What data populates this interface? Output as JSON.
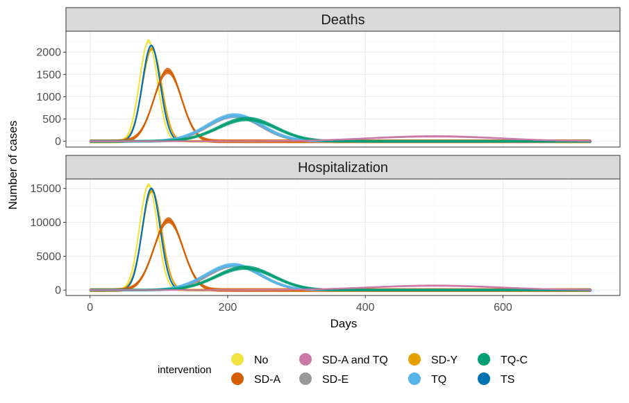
{
  "chart_data": {
    "type": "line",
    "xlabel": "Days",
    "ylabel": "Number of cases",
    "xlim": [
      -35,
      770
    ],
    "x_ticks": [
      0,
      200,
      400,
      600
    ],
    "legend": {
      "title": "intervention",
      "position": "bottom",
      "entries": [
        {
          "label": "No",
          "color": "#F0E442"
        },
        {
          "label": "SD-A",
          "color": "#D55E00"
        },
        {
          "label": "SD-A and TQ",
          "color": "#CC79A7"
        },
        {
          "label": "SD-E",
          "color": "#999999"
        },
        {
          "label": "SD-Y",
          "color": "#E69F00"
        },
        {
          "label": "TQ",
          "color": "#56B4E9"
        },
        {
          "label": "TQ-C",
          "color": "#009E73"
        },
        {
          "label": "TS",
          "color": "#0072B2"
        }
      ]
    },
    "facets": [
      {
        "name": "Deaths",
        "ylim": [
          -130,
          2470
        ],
        "y_ticks": [
          0,
          500,
          1000,
          1500,
          2000
        ],
        "series": [
          {
            "name": "No",
            "color": "#F0E442",
            "peaks": [
              {
                "day": 85,
                "value": 2250,
                "width": 13
              }
            ],
            "band": 45
          },
          {
            "name": "SD-Y",
            "color": "#E69F00",
            "peaks": [
              {
                "day": 90,
                "value": 2080,
                "width": 14
              }
            ],
            "band": 45
          },
          {
            "name": "TS",
            "color": "#0072B2",
            "peaks": [
              {
                "day": 89,
                "value": 2150,
                "width": 13
              }
            ],
            "band": 20
          },
          {
            "name": "SD-A",
            "color": "#D55E00",
            "peaks": [
              {
                "day": 113,
                "value": 1580,
                "width": 20
              }
            ],
            "band": 70
          },
          {
            "name": "SD-E",
            "color": "#999999",
            "peaks": [
              {
                "day": 210,
                "value": 560,
                "width": 38
              }
            ],
            "band": 40
          },
          {
            "name": "TQ",
            "color": "#56B4E9",
            "peaks": [
              {
                "day": 210,
                "value": 580,
                "width": 40
              }
            ],
            "band": 50
          },
          {
            "name": "TQ-C",
            "color": "#009E73",
            "peaks": [
              {
                "day": 228,
                "value": 500,
                "width": 42
              }
            ],
            "band": 50
          },
          {
            "name": "SD-A and TQ",
            "color": "#CC79A7",
            "peaks": [
              {
                "day": 500,
                "value": 110,
                "width": 95
              }
            ],
            "band": 25
          }
        ]
      },
      {
        "name": "Hospitalization",
        "ylim": [
          -800,
          16400
        ],
        "y_ticks": [
          0,
          5000,
          10000,
          15000
        ],
        "series": [
          {
            "name": "No",
            "color": "#F0E442",
            "peaks": [
              {
                "day": 85,
                "value": 15500,
                "width": 13
              }
            ],
            "band": 300
          },
          {
            "name": "SD-Y",
            "color": "#E69F00",
            "peaks": [
              {
                "day": 90,
                "value": 14700,
                "width": 14
              }
            ],
            "band": 300
          },
          {
            "name": "TS",
            "color": "#0072B2",
            "peaks": [
              {
                "day": 89,
                "value": 15000,
                "width": 13
              }
            ],
            "band": 150
          },
          {
            "name": "SD-A",
            "color": "#D55E00",
            "peaks": [
              {
                "day": 114,
                "value": 10300,
                "width": 21
              }
            ],
            "band": 450
          },
          {
            "name": "SD-E",
            "color": "#999999",
            "peaks": [
              {
                "day": 210,
                "value": 3600,
                "width": 38
              }
            ],
            "band": 250
          },
          {
            "name": "TQ",
            "color": "#56B4E9",
            "peaks": [
              {
                "day": 208,
                "value": 3700,
                "width": 40
              }
            ],
            "band": 300
          },
          {
            "name": "TQ-C",
            "color": "#009E73",
            "peaks": [
              {
                "day": 225,
                "value": 3300,
                "width": 42
              }
            ],
            "band": 320
          },
          {
            "name": "SD-A and TQ",
            "color": "#CC79A7",
            "peaks": [
              {
                "day": 500,
                "value": 650,
                "width": 95
              }
            ],
            "band": 150
          }
        ]
      }
    ]
  }
}
